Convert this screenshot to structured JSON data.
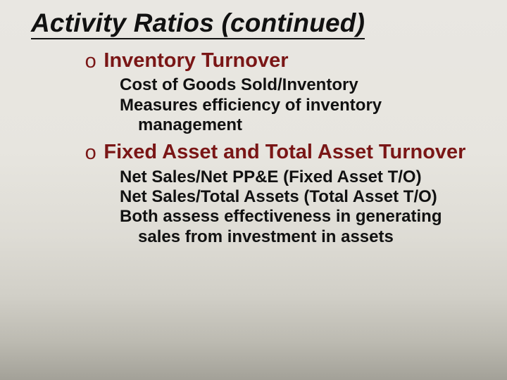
{
  "slide": {
    "title": "Activity Ratios (continued)",
    "title_fontsize": 37,
    "title_color": "#111111",
    "underline_color": "#111111",
    "bullet_char": "o",
    "sections": [
      {
        "heading": "Inventory Turnover",
        "heading_color": "#7a1616",
        "heading_fontsize": 29,
        "details": [
          "Cost of Goods Sold/Inventory",
          "Measures efficiency of inventory management"
        ],
        "detail_fontsize": 24
      },
      {
        "heading": "Fixed Asset and Total Asset Turnover",
        "heading_color": "#7a1616",
        "heading_fontsize": 29,
        "details": [
          "Net Sales/Net PP&E (Fixed Asset T/O)",
          "Net Sales/Total Assets (Total Asset T/O)",
          "Both assess effectiveness in generating sales from investment in assets"
        ],
        "detail_fontsize": 24
      }
    ],
    "background_gradient": [
      "#e9e7e2",
      "#a3a198"
    ]
  }
}
